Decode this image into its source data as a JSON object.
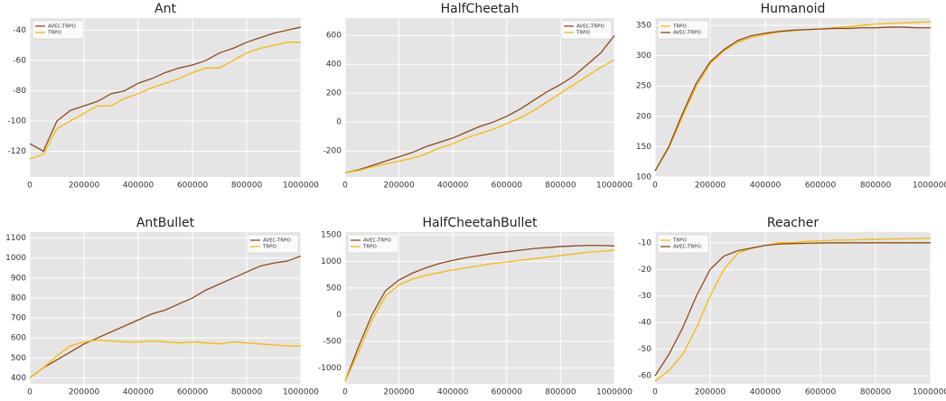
{
  "chart_data": [
    {
      "type": "line",
      "title": "Ant",
      "legend": "upper left",
      "grid": true,
      "x": [
        0,
        50000,
        100000,
        150000,
        200000,
        250000,
        300000,
        350000,
        400000,
        450000,
        500000,
        550000,
        600000,
        650000,
        700000,
        750000,
        800000,
        850000,
        900000,
        950000,
        1000000
      ],
      "xlim": [
        0,
        1000000
      ],
      "xticks": [
        0,
        200000,
        400000,
        600000,
        800000,
        1000000
      ],
      "ylim": [
        -137,
        -32
      ],
      "yticks": [
        -120,
        -100,
        -80,
        -60,
        -40
      ],
      "series": [
        {
          "name": "AVEC-TRPO",
          "color": "#8c4a1c",
          "values": [
            -115,
            -120,
            -100,
            -93,
            -90,
            -87,
            -82,
            -80,
            -75,
            -72,
            -68,
            -65,
            -63,
            -60,
            -55,
            -52,
            -48,
            -45,
            -42,
            -40,
            -38
          ]
        },
        {
          "name": "TRPO",
          "color": "#f5b90a",
          "values": [
            -125,
            -122,
            -105,
            -100,
            -95,
            -90,
            -90,
            -85,
            -82,
            -78,
            -75,
            -72,
            -68,
            -65,
            -65,
            -60,
            -55,
            -52,
            -50,
            -48,
            -48
          ]
        }
      ]
    },
    {
      "type": "line",
      "title": "HalfCheetah",
      "legend": "upper right",
      "grid": true,
      "x": [
        0,
        50000,
        100000,
        150000,
        200000,
        250000,
        300000,
        350000,
        400000,
        450000,
        500000,
        550000,
        600000,
        650000,
        700000,
        750000,
        800000,
        850000,
        900000,
        950000,
        1000000
      ],
      "xlim": [
        0,
        1000000
      ],
      "xticks": [
        0,
        200000,
        400000,
        600000,
        800000,
        1000000
      ],
      "ylim": [
        -380,
        720
      ],
      "yticks": [
        -200,
        0,
        200,
        400,
        600
      ],
      "series": [
        {
          "name": "AVEC-TRPO",
          "color": "#8c4a1c",
          "values": [
            -350,
            -330,
            -300,
            -270,
            -240,
            -210,
            -170,
            -140,
            -110,
            -70,
            -30,
            0,
            40,
            90,
            150,
            210,
            260,
            320,
            400,
            480,
            600
          ]
        },
        {
          "name": "TRPO",
          "color": "#f5b90a",
          "values": [
            -350,
            -335,
            -310,
            -290,
            -270,
            -250,
            -220,
            -180,
            -150,
            -110,
            -80,
            -50,
            -10,
            30,
            80,
            140,
            200,
            260,
            320,
            380,
            430
          ]
        }
      ]
    },
    {
      "type": "line",
      "title": "Humanoid",
      "legend": "upper left",
      "grid": true,
      "x": [
        0,
        50000,
        100000,
        150000,
        200000,
        250000,
        300000,
        350000,
        400000,
        450000,
        500000,
        550000,
        600000,
        650000,
        700000,
        750000,
        800000,
        850000,
        900000,
        950000,
        1000000
      ],
      "xlim": [
        0,
        1000000
      ],
      "xticks": [
        0,
        200000,
        400000,
        600000,
        800000,
        1000000
      ],
      "ylim": [
        100,
        362
      ],
      "yticks": [
        100,
        150,
        200,
        250,
        300,
        350
      ],
      "series": [
        {
          "name": "TRPO",
          "color": "#f5b90a",
          "values": [
            110,
            148,
            200,
            250,
            287,
            308,
            322,
            330,
            335,
            339,
            341,
            343,
            344,
            346,
            348,
            350,
            352,
            353,
            354,
            355,
            356
          ]
        },
        {
          "name": "AVEC-TRPO",
          "color": "#8c4a1c",
          "values": [
            110,
            150,
            205,
            255,
            290,
            310,
            325,
            333,
            337,
            340,
            342,
            343,
            344,
            345,
            345,
            346,
            346,
            347,
            347,
            346,
            346
          ]
        }
      ]
    },
    {
      "type": "line",
      "title": "AntBullet",
      "legend": "upper right",
      "grid": true,
      "x": [
        0,
        50000,
        100000,
        150000,
        200000,
        250000,
        300000,
        350000,
        400000,
        450000,
        500000,
        550000,
        600000,
        650000,
        700000,
        750000,
        800000,
        850000,
        900000,
        950000,
        1000000
      ],
      "xlim": [
        0,
        1000000
      ],
      "xticks": [
        0,
        200000,
        400000,
        600000,
        800000,
        1000000
      ],
      "ylim": [
        370,
        1130
      ],
      "yticks": [
        400,
        500,
        600,
        700,
        800,
        900,
        1000,
        1100
      ],
      "series": [
        {
          "name": "AVEC-TRPO",
          "color": "#8c4a1c",
          "values": [
            400,
            450,
            490,
            530,
            570,
            600,
            630,
            660,
            690,
            720,
            740,
            770,
            800,
            840,
            870,
            900,
            930,
            960,
            975,
            985,
            1010
          ]
        },
        {
          "name": "TRPO",
          "color": "#f5b90a",
          "values": [
            400,
            450,
            510,
            560,
            580,
            590,
            585,
            580,
            580,
            585,
            580,
            575,
            580,
            575,
            570,
            580,
            575,
            570,
            565,
            560,
            560
          ]
        }
      ]
    },
    {
      "type": "line",
      "title": "HalfCheetahBullet",
      "legend": "upper left",
      "grid": true,
      "x": [
        0,
        50000,
        100000,
        150000,
        200000,
        250000,
        300000,
        350000,
        400000,
        450000,
        500000,
        550000,
        600000,
        650000,
        700000,
        750000,
        800000,
        850000,
        900000,
        950000,
        1000000
      ],
      "xlim": [
        0,
        1000000
      ],
      "xticks": [
        0,
        200000,
        400000,
        600000,
        800000,
        1000000
      ],
      "ylim": [
        -1300,
        1550
      ],
      "yticks": [
        -1000,
        -500,
        0,
        500,
        1000,
        1500
      ],
      "series": [
        {
          "name": "AVEC-TRPO",
          "color": "#8c4a1c",
          "values": [
            -1250,
            -600,
            0,
            450,
            650,
            780,
            880,
            960,
            1020,
            1070,
            1110,
            1150,
            1180,
            1210,
            1240,
            1260,
            1280,
            1290,
            1300,
            1300,
            1290
          ]
        },
        {
          "name": "TRPO",
          "color": "#f5b90a",
          "values": [
            -1250,
            -700,
            -100,
            350,
            560,
            670,
            740,
            790,
            840,
            880,
            920,
            960,
            990,
            1020,
            1050,
            1080,
            1110,
            1140,
            1170,
            1190,
            1210
          ]
        }
      ]
    },
    {
      "type": "line",
      "title": "Reacher",
      "legend": "upper left",
      "grid": true,
      "x": [
        0,
        50000,
        100000,
        150000,
        200000,
        250000,
        300000,
        350000,
        400000,
        450000,
        500000,
        550000,
        600000,
        650000,
        700000,
        750000,
        800000,
        850000,
        900000,
        950000,
        1000000
      ],
      "xlim": [
        0,
        1000000
      ],
      "xticks": [
        0,
        200000,
        400000,
        600000,
        800000,
        1000000
      ],
      "ylim": [
        -63,
        -6
      ],
      "yticks": [
        -60,
        -50,
        -40,
        -30,
        -20,
        -10
      ],
      "series": [
        {
          "name": "TRPO",
          "color": "#f5b90a",
          "values": [
            -62,
            -58,
            -52,
            -42,
            -30,
            -20,
            -14,
            -12,
            -11,
            -10,
            -10,
            -9.5,
            -9.3,
            -9,
            -9,
            -8.8,
            -8.7,
            -8.6,
            -8.5,
            -8.4,
            -8.3
          ]
        },
        {
          "name": "AVEC-TRPO",
          "color": "#8c4a1c",
          "values": [
            -60,
            -52,
            -42,
            -30,
            -20,
            -15,
            -13,
            -12,
            -11,
            -10.5,
            -10.3,
            -10.2,
            -10.1,
            -10,
            -10,
            -10,
            -10,
            -10,
            -10,
            -10,
            -10
          ]
        }
      ]
    }
  ]
}
